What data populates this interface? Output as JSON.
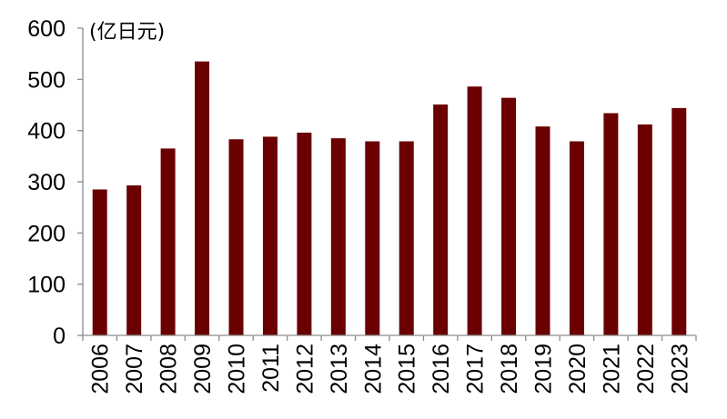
{
  "chart_data": {
    "type": "bar",
    "title": "",
    "xlabel": "",
    "ylabel": "(亿日元)",
    "categories": [
      "2006",
      "2007",
      "2008",
      "2009",
      "2010",
      "2011",
      "2012",
      "2013",
      "2014",
      "2015",
      "2016",
      "2017",
      "2018",
      "2019",
      "2020",
      "2021",
      "2022",
      "2023"
    ],
    "values": [
      285,
      293,
      365,
      535,
      383,
      388,
      396,
      385,
      379,
      379,
      451,
      486,
      464,
      408,
      379,
      434,
      412,
      444
    ],
    "ylim": [
      0,
      600
    ],
    "yticks": [
      "0",
      "100",
      "200",
      "300",
      "400",
      "500",
      "600"
    ],
    "grid": false,
    "legend": "none",
    "bar_color": "#6b0000"
  }
}
